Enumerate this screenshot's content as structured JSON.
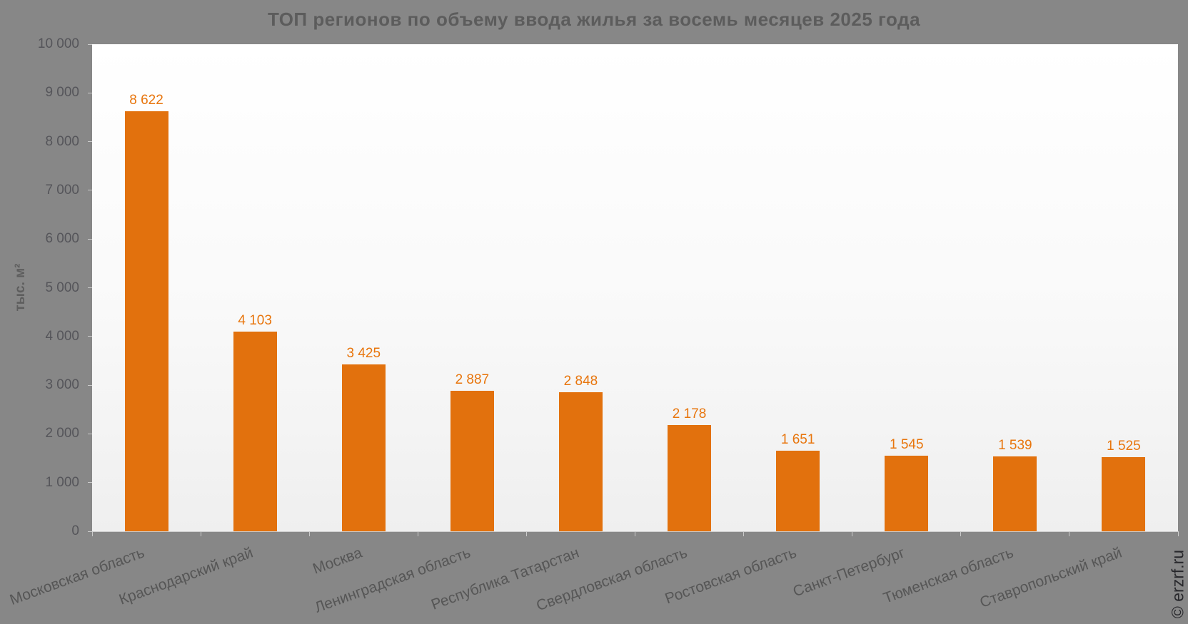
{
  "chart_data": {
    "type": "bar",
    "title": "ТОП регионов по объему ввода жилья за восемь месяцев 2025 года",
    "ylabel": "тыс. м²",
    "xlabel": "",
    "categories": [
      "Московская область",
      "Краснодарский край",
      "Москва",
      "Ленинградская область",
      "Республика Татарстан",
      "Свердловская область",
      "Ростовская область",
      "Санкт-Петербург",
      "Тюменская область",
      "Ставропольский край"
    ],
    "values": [
      8622,
      4103,
      3425,
      2887,
      2848,
      2178,
      1651,
      1545,
      1539,
      1525
    ],
    "value_labels": [
      "8 622",
      "4 103",
      "3 425",
      "2 887",
      "2 848",
      "2 178",
      "1 651",
      "1 545",
      "1 539",
      "1 525"
    ],
    "ylim": [
      0,
      10000
    ],
    "ytick_step": 1000,
    "ytick_labels": [
      "0",
      "1 000",
      "2 000",
      "3 000",
      "4 000",
      "5 000",
      "6 000",
      "7 000",
      "8 000",
      "9 000",
      "10 000"
    ],
    "grid": false,
    "legend": false,
    "bar_color": "#e2710d",
    "value_label_color": "#e8750c",
    "background_color": "#878787"
  },
  "watermark": "© erzrf.ru"
}
